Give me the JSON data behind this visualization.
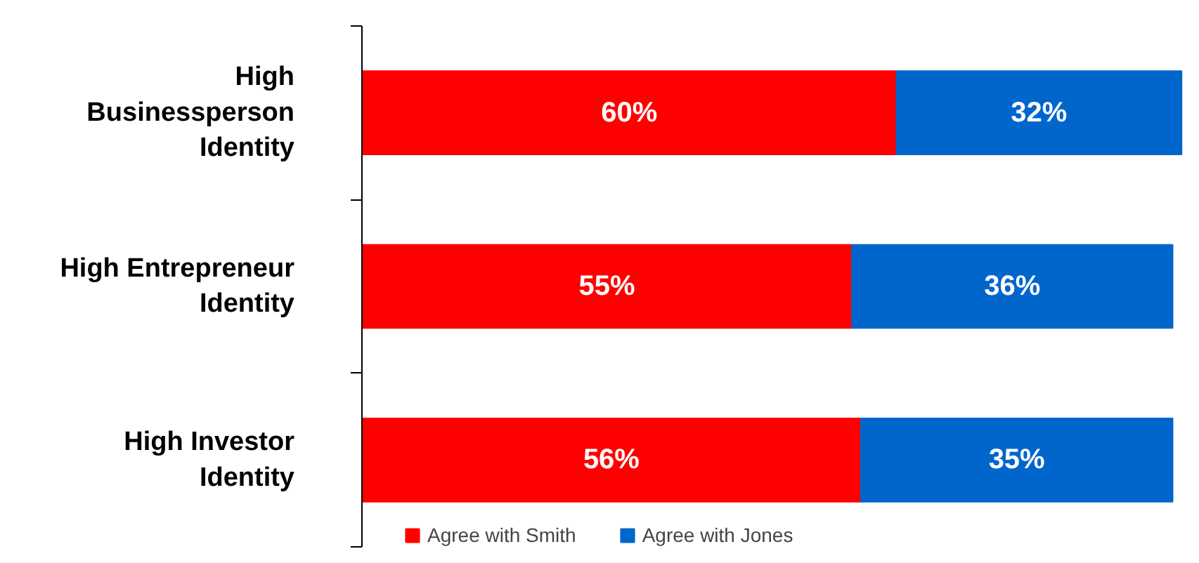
{
  "chart_data": {
    "type": "bar",
    "orientation": "horizontal",
    "stacked": true,
    "categories": [
      "High Businessperson Identity",
      "High Entrepreneur Identity",
      "High Investor Identity"
    ],
    "series": [
      {
        "name": "Agree with Smith",
        "color": "#ff0000",
        "values": [
          60,
          55,
          56
        ],
        "value_labels": [
          "60%",
          "55%",
          "56%"
        ]
      },
      {
        "name": "Agree with Jones",
        "color": "#0066cc",
        "values": [
          32,
          36,
          35
        ],
        "value_labels": [
          "32%",
          "36%",
          "35%"
        ]
      }
    ],
    "legend": "bottom"
  }
}
